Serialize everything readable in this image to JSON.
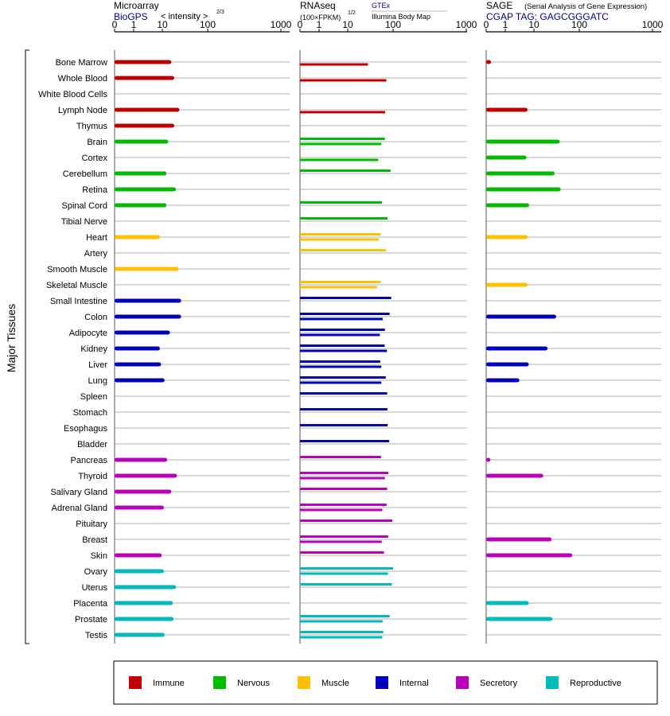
{
  "chart_data": {
    "type": "bar",
    "orientation": "horizontal",
    "ylabel": "Major Tissues",
    "xticks": [
      "0",
      "1",
      "10",
      "100",
      "1000"
    ],
    "panels": [
      {
        "title": "Microarray",
        "source": "BioGPS",
        "scale_label": "< intensity >",
        "scale_power": "2/3"
      },
      {
        "title": "RNAseq",
        "scale_label": "(100×FPKM)",
        "scale_power": "1/2",
        "source_a": "GTEx",
        "source_b": "Illumina Body Map"
      },
      {
        "title": "SAGE",
        "subtitle": "(Serial Analysis of Gene Expression)",
        "source": "CGAP TAG: GAGCGGGATC"
      }
    ],
    "categories": [
      "Bone Marrow",
      "Whole Blood",
      "White Blood Cells",
      "Lymph Node",
      "Thymus",
      "Brain",
      "Cortex",
      "Cerebellum",
      "Retina",
      "Spinal Cord",
      "Tibial Nerve",
      "Heart",
      "Artery",
      "Smooth Muscle",
      "Skeletal Muscle",
      "Small Intestine",
      "Colon",
      "Adipocyte",
      "Kidney",
      "Liver",
      "Lung",
      "Spleen",
      "Stomach",
      "Esophagus",
      "Bladder",
      "Pancreas",
      "Thyroid",
      "Salivary Gland",
      "Adrenal Gland",
      "Pituitary",
      "Breast",
      "Skin",
      "Ovary",
      "Uterus",
      "Placenta",
      "Prostate",
      "Testis"
    ],
    "groups": [
      "immune",
      "immune",
      "immune",
      "immune",
      "immune",
      "nervous",
      "nervous",
      "nervous",
      "nervous",
      "nervous",
      "nervous",
      "muscle",
      "muscle",
      "muscle",
      "muscle",
      "internal",
      "internal",
      "internal",
      "internal",
      "internal",
      "internal",
      "internal",
      "internal",
      "internal",
      "internal",
      "secretory",
      "secretory",
      "secretory",
      "secretory",
      "secretory",
      "secretory",
      "secretory",
      "reproductive",
      "reproductive",
      "reproductive",
      "reproductive",
      "reproductive"
    ],
    "microarray": [
      15.8,
      18.3,
      null,
      23.8,
      18.3,
      13.5,
      null,
      12.3,
      20,
      12.3,
      null,
      8.2,
      null,
      23,
      null,
      26,
      26,
      14.7,
      8.2,
      9,
      11.2,
      null,
      null,
      null,
      null,
      12.8,
      21,
      15.8,
      10.8,
      null,
      null,
      9.5,
      10.8,
      20,
      17,
      17.8,
      11.2
    ],
    "rnaseq_gtex": [
      null,
      null,
      null,
      null,
      null,
      66,
      null,
      88,
      null,
      57,
      76,
      53,
      70,
      null,
      53,
      91,
      84,
      66,
      65,
      52,
      69,
      74,
      75,
      76,
      82,
      54,
      79,
      74,
      72,
      96,
      78,
      63,
      100,
      94,
      null,
      84,
      61
    ],
    "rnaseq_ibm": [
      28,
      71,
      null,
      67,
      null,
      55,
      47,
      null,
      null,
      null,
      null,
      48,
      null,
      null,
      44,
      null,
      59,
      51,
      73,
      55,
      55,
      null,
      null,
      null,
      null,
      null,
      66,
      null,
      58,
      null,
      56,
      null,
      77,
      null,
      null,
      59,
      58
    ],
    "sage": [
      0.25,
      null,
      null,
      6,
      null,
      37,
      5.5,
      28.5,
      39,
      6.8,
      null,
      6,
      null,
      null,
      6,
      null,
      31,
      null,
      20,
      6.6,
      3.1,
      null,
      null,
      null,
      null,
      0.22,
      16,
      null,
      null,
      null,
      24.5,
      70,
      null,
      null,
      6.6,
      25.5,
      null
    ],
    "legend": [
      {
        "key": "immune",
        "label": "Immune",
        "color": "#c00000"
      },
      {
        "key": "nervous",
        "label": "Nervous",
        "color": "#00bb00"
      },
      {
        "key": "muscle",
        "label": "Muscle",
        "color": "#ffc000"
      },
      {
        "key": "internal",
        "label": "Internal",
        "color": "#0000bb"
      },
      {
        "key": "secretory",
        "label": "Secretory",
        "color": "#bb00bb"
      },
      {
        "key": "reproductive",
        "label": "Reproductive",
        "color": "#00bbbb"
      }
    ]
  }
}
